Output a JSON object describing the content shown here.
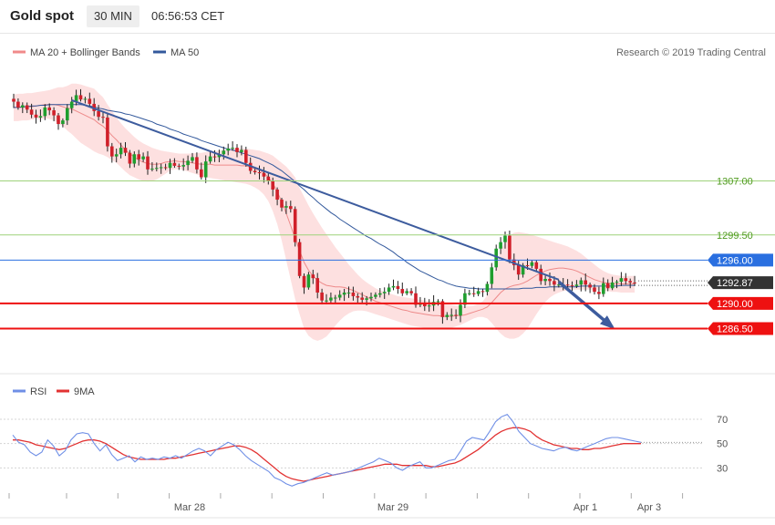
{
  "header": {
    "title": "Gold spot",
    "interval": "30 MIN",
    "time": "06:56:53 CET"
  },
  "legend": {
    "ma20_label": "MA 20 + Bollinger Bands",
    "ma50_label": "MA 50",
    "credit": "Research © 2019 Trading Central",
    "rsi_label": "RSI",
    "ma9_label": "9MA"
  },
  "colors": {
    "candle_up": "#1f9e2e",
    "candle_down": "#d0202a",
    "boll_fill": "#fde0e0",
    "ma20": "#ee8a8a",
    "ma50": "#33599c",
    "trendline": "#3d5c9e",
    "support": "#ee1111",
    "resistance_green": "#9ed27a",
    "current_price_bg": "#333333",
    "resistance_blue_bg": "#2a6fe0",
    "rsi_line": "#6f8fe6",
    "rsi_ma": "#e23232"
  },
  "chart_data": [
    {
      "type": "candlestick",
      "title": "Gold spot",
      "interval": "30 MIN",
      "ylim": [
        1281.5,
        1322.5
      ],
      "x_tick_labels": [
        "Mar 28",
        "Mar 29",
        "Apr 1",
        "Apr 3"
      ],
      "price_levels": [
        {
          "value": 1307.0,
          "label": "1307.00",
          "kind": "resistance-green"
        },
        {
          "value": 1299.5,
          "label": "1299.50",
          "kind": "resistance-green"
        },
        {
          "value": 1296.0,
          "label": "1296.00",
          "kind": "resistance-blue"
        },
        {
          "value": 1292.87,
          "label": "1292.87",
          "kind": "current-price"
        },
        {
          "value": 1290.0,
          "label": "1290.00",
          "kind": "support"
        },
        {
          "value": 1286.5,
          "label": "1286.50",
          "kind": "support"
        }
      ],
      "trendline": {
        "from": [
          13,
          1318.2
        ],
        "to": [
          122,
          1293.3
        ]
      },
      "forecast_arrow": {
        "from": [
          122,
          1293.0
        ],
        "to": [
          134,
          1286.7
        ]
      },
      "closes": [
        1318,
        1317.2,
        1317.5,
        1316.9,
        1316.2,
        1315.8,
        1316,
        1317.2,
        1316.8,
        1316.1,
        1314.9,
        1315.4,
        1317.1,
        1318,
        1318.9,
        1318.3,
        1318.4,
        1317.7,
        1316.7,
        1315.9,
        1315.8,
        1311.8,
        1310.4,
        1310.7,
        1311.6,
        1310.9,
        1309.4,
        1310.7,
        1310,
        1310.4,
        1308.6,
        1308.7,
        1308.8,
        1308.9,
        1308.8,
        1309.5,
        1309.1,
        1309,
        1309.2,
        1309.8,
        1310.3,
        1308.6,
        1307.5,
        1309.7,
        1310.4,
        1310.3,
        1310.7,
        1311.2,
        1311.5,
        1311.6,
        1311,
        1311.3,
        1309.5,
        1308.4,
        1308.2,
        1308.1,
        1307.6,
        1307,
        1305.8,
        1304.4,
        1303.3,
        1303.5,
        1303.1,
        1298.5,
        1293.8,
        1292.2,
        1294,
        1293.5,
        1291.5,
        1290.4,
        1290.4,
        1290.8,
        1290.8,
        1291.2,
        1291.5,
        1291.5,
        1291,
        1290.8,
        1290.5,
        1290.7,
        1290.9,
        1291.2,
        1291.4,
        1291.6,
        1292.2,
        1292.4,
        1292,
        1291.4,
        1291.7,
        1291.4,
        1289.8,
        1290.1,
        1289.6,
        1289.7,
        1290.2,
        1290.3,
        1288.1,
        1288.4,
        1288.4,
        1288.3,
        1289.8,
        1291.4,
        1291.4,
        1291.3,
        1291.7,
        1291.6,
        1292.7,
        1295,
        1297.6,
        1298.5,
        1299.4,
        1296.1,
        1295.3,
        1294,
        1295.3,
        1295.2,
        1295.7,
        1294.8,
        1293.1,
        1293.4,
        1293.1,
        1292.6,
        1292.6,
        1292.6,
        1292.5,
        1292.4,
        1292.6,
        1293.2,
        1292.6,
        1292.2,
        1291.6,
        1291.3,
        1292.8,
        1292.1,
        1292.9,
        1293,
        1293.5,
        1293.1,
        1292.9,
        1292.87
      ],
      "upper_band": [
        1319,
        1319.1,
        1319.1,
        1319.2,
        1319.2,
        1319.3,
        1319.4,
        1319.5,
        1319.6,
        1319.8,
        1320,
        1320,
        1320.2,
        1320.5,
        1320.5,
        1320.4,
        1320.2,
        1320,
        1319.8,
        1319.2,
        1318.6,
        1317.6,
        1316.7,
        1315.8,
        1315,
        1314.3,
        1313.7,
        1313.1,
        1312.6,
        1312.2,
        1311.9,
        1311.6,
        1311.4,
        1311.2,
        1311.1,
        1311,
        1310.9,
        1310.8,
        1310.8,
        1310.8,
        1310.8,
        1310.9,
        1310.9,
        1311,
        1311.1,
        1311.1,
        1311.2,
        1311.3,
        1311.4,
        1311.5,
        1311.5,
        1311.5,
        1311.5,
        1311.4,
        1311.3,
        1311.2,
        1311,
        1310.8,
        1310.5,
        1310,
        1309.5,
        1309,
        1308.3,
        1307.5,
        1306,
        1304.8,
        1303.6,
        1302.5,
        1301.5,
        1300.5,
        1299.6,
        1298.7,
        1297.8,
        1297,
        1296.2,
        1295.4,
        1294.7,
        1294,
        1293.4,
        1292.9,
        1292.5,
        1292.1,
        1291.8,
        1291.6,
        1291.4,
        1291.2,
        1291,
        1290.9,
        1290.8,
        1290.7,
        1290.6,
        1290.5,
        1290.4,
        1290.3,
        1290.2,
        1290.1,
        1290,
        1289.9,
        1289.8,
        1289.7,
        1289.6,
        1289.6,
        1289.6,
        1289.7,
        1289.9,
        1290.3,
        1291.1,
        1292.9,
        1295.2,
        1297.3,
        1298.6,
        1299.4,
        1299.8,
        1299.9,
        1299.8,
        1299.7,
        1299.5,
        1299.3,
        1299.1,
        1298.9,
        1298.7,
        1298.5,
        1298.3,
        1298.1,
        1297.9,
        1297.6,
        1297.3,
        1296.9,
        1296.4,
        1295.9,
        1295.4,
        1294.9,
        1294.5,
        1294.2,
        1294,
        1293.9,
        1293.8,
        1293.8,
        1293.8,
        1293.8
      ],
      "lower_band": [
        1315.3,
        1315.3,
        1315.4,
        1315.4,
        1315.5,
        1315.6,
        1315.6,
        1315.7,
        1315.6,
        1315.4,
        1315,
        1314.6,
        1314,
        1313.5,
        1312.9,
        1312.3,
        1311.9,
        1311.5,
        1311.1,
        1310.8,
        1310.6,
        1310.3,
        1309.9,
        1309.5,
        1308.9,
        1308.3,
        1307.8,
        1307.5,
        1307.2,
        1307,
        1306.9,
        1307,
        1307.2,
        1307.6,
        1308,
        1308.4,
        1308.6,
        1308.6,
        1308.5,
        1308.3,
        1308.1,
        1307.9,
        1307.7,
        1307.5,
        1307.4,
        1307.3,
        1307.2,
        1307.1,
        1307,
        1306.9,
        1306.8,
        1306.7,
        1306.6,
        1306.4,
        1306.1,
        1305.7,
        1305.1,
        1304.2,
        1302.8,
        1301,
        1298.7,
        1296,
        1293.3,
        1290.6,
        1288.5,
        1286.5,
        1285.5,
        1285,
        1284.8,
        1285,
        1285.4,
        1286.1,
        1286.9,
        1287.6,
        1288.2,
        1288.6,
        1288.9,
        1289,
        1289,
        1288.9,
        1288.7,
        1288.5,
        1288.3,
        1288.1,
        1287.9,
        1287.7,
        1287.5,
        1287.3,
        1287.1,
        1286.9,
        1286.8,
        1286.7,
        1286.6,
        1286.5,
        1286.4,
        1286.4,
        1286.4,
        1286.5,
        1286.6,
        1286.8,
        1287,
        1287.3,
        1287.6,
        1287.9,
        1288.1,
        1288.1,
        1287.9,
        1287.3,
        1286.5,
        1285.8,
        1285.3,
        1285.1,
        1285.1,
        1285.3,
        1285.8,
        1286.5,
        1287.5,
        1288.5,
        1289.4,
        1290.2,
        1290.8,
        1291.2,
        1291.5,
        1291.7,
        1291.8,
        1291.9,
        1291.9,
        1291.9,
        1291.9,
        1291.9,
        1291.8,
        1291.8,
        1291.7,
        1291.7,
        1291.6,
        1291.6,
        1291.5,
        1291.5,
        1291.5,
        1291.5
      ],
      "ma20": [
        1317.2,
        1317.2,
        1317.2,
        1317.3,
        1317.3,
        1317.4,
        1317.5,
        1317.6,
        1317.6,
        1317.6,
        1317.5,
        1317.3,
        1317.1,
        1317,
        1316.7,
        1316.4,
        1316.1,
        1315.8,
        1315.5,
        1315,
        1314.6,
        1314,
        1313.3,
        1312.7,
        1312,
        1311.3,
        1310.8,
        1310.3,
        1309.9,
        1309.6,
        1309.4,
        1309.3,
        1309.3,
        1309.4,
        1309.6,
        1309.7,
        1309.8,
        1309.7,
        1309.7,
        1309.6,
        1309.5,
        1309.4,
        1309.3,
        1309.3,
        1309.3,
        1309.2,
        1309.2,
        1309.2,
        1309.2,
        1309.2,
        1309.2,
        1309.1,
        1309.1,
        1308.9,
        1308.7,
        1308.5,
        1308.1,
        1307.5,
        1306.7,
        1305.5,
        1304.1,
        1302.5,
        1300.8,
        1299,
        1297.3,
        1295.7,
        1294.6,
        1293.8,
        1293.2,
        1292.8,
        1292.5,
        1292.4,
        1292.3,
        1292.3,
        1292.2,
        1292,
        1291.8,
        1291.5,
        1291.2,
        1290.9,
        1290.6,
        1290.3,
        1290.1,
        1289.9,
        1289.7,
        1289.5,
        1289.3,
        1289.1,
        1289,
        1288.8,
        1288.7,
        1288.6,
        1288.5,
        1288.4,
        1288.3,
        1288.3,
        1288.2,
        1288.2,
        1288.2,
        1288.3,
        1288.3,
        1288.4,
        1288.6,
        1288.8,
        1289,
        1289.2,
        1289.5,
        1290.1,
        1290.8,
        1291.5,
        1292,
        1292.3,
        1292.5,
        1292.6,
        1292.8,
        1293.1,
        1293.5,
        1293.9,
        1294.2,
        1294.5,
        1294.7,
        1294.8,
        1294.9,
        1294.9,
        1294.8,
        1294.7,
        1294.5,
        1294.2,
        1293.9,
        1293.6,
        1293.3,
        1293.1,
        1292.9,
        1292.8,
        1292.7,
        1292.7,
        1292.7,
        1292.7,
        1292.7,
        1292.7
      ],
      "ma50": [
        1317.2,
        1317.2,
        1317.3,
        1317.3,
        1317.4,
        1317.4,
        1317.5,
        1317.5,
        1317.6,
        1317.6,
        1317.6,
        1317.6,
        1317.6,
        1317.6,
        1317.6,
        1317.6,
        1317.5,
        1317.4,
        1317.3,
        1317.1,
        1317,
        1316.8,
        1316.7,
        1316.6,
        1316.5,
        1316.3,
        1316.2,
        1316,
        1315.8,
        1315.6,
        1315.4,
        1315.2,
        1314.9,
        1314.7,
        1314.5,
        1314.2,
        1314,
        1313.8,
        1313.5,
        1313.3,
        1313.1,
        1312.9,
        1312.6,
        1312.4,
        1312.2,
        1312,
        1311.8,
        1311.6,
        1311.4,
        1311.3,
        1311.1,
        1310.9,
        1310.7,
        1310.5,
        1310.3,
        1310.1,
        1309.8,
        1309.5,
        1309.2,
        1308.8,
        1308.4,
        1307.9,
        1307.4,
        1306.9,
        1306.3,
        1305.8,
        1305.2,
        1304.7,
        1304.1,
        1303.6,
        1303.1,
        1302.6,
        1302.2,
        1301.7,
        1301.3,
        1300.9,
        1300.5,
        1300.1,
        1299.7,
        1299.3,
        1299,
        1298.6,
        1298.2,
        1297.9,
        1297.5,
        1297.1,
        1296.6,
        1296.2,
        1295.7,
        1295.3,
        1294.9,
        1294.5,
        1294.2,
        1293.9,
        1293.6,
        1293.3,
        1293.1,
        1292.8,
        1292.6,
        1292.4,
        1292.3,
        1292.2,
        1292.1,
        1292.1,
        1292,
        1292,
        1292,
        1292,
        1292,
        1292,
        1292,
        1292,
        1292,
        1292,
        1292.1,
        1292.1,
        1292.1,
        1292.2,
        1292.2,
        1292.2,
        1292.3,
        1292.3,
        1292.3,
        1292.3,
        1292.3,
        1292.3,
        1292.3,
        1292.4,
        1292.4,
        1292.4,
        1292.4,
        1292.4,
        1292.4,
        1292.4,
        1292.4,
        1292.4,
        1292.5,
        1292.5,
        1292.5,
        1292.5
      ]
    },
    {
      "type": "line",
      "ylim": [
        10,
        85
      ],
      "y_tick_labels": [
        "70",
        "50",
        "30"
      ],
      "series": [
        {
          "name": "RSI",
          "values": [
            57,
            51,
            49,
            43,
            40,
            43,
            53,
            48,
            40,
            44,
            53,
            58,
            59,
            58,
            50,
            44,
            49,
            41,
            36,
            38,
            40,
            35,
            39,
            37,
            38,
            37,
            39,
            38,
            40,
            38,
            41,
            44,
            46,
            44,
            40,
            45,
            48,
            51,
            49,
            45,
            40,
            36,
            33,
            30,
            27,
            22,
            20,
            17,
            15,
            17,
            18,
            20,
            22,
            24,
            26,
            24,
            25,
            26,
            27,
            29,
            31,
            33,
            35,
            38,
            36,
            34,
            30,
            28,
            31,
            33,
            35,
            30,
            30,
            32,
            34,
            36,
            37,
            44,
            52,
            55,
            54,
            53,
            60,
            68,
            72,
            74,
            68,
            60,
            55,
            50,
            48,
            46,
            45,
            44,
            46,
            47,
            45,
            44,
            46,
            48,
            50,
            52,
            54,
            55,
            55,
            54,
            53,
            52,
            51
          ]
        },
        {
          "name": "9MA",
          "values": [
            53,
            53,
            52,
            51,
            49,
            48,
            47,
            46,
            45,
            46,
            48,
            50,
            52,
            53,
            53,
            52,
            50,
            47,
            44,
            41,
            39,
            38,
            37,
            37,
            37,
            37,
            37,
            38,
            38,
            39,
            40,
            41,
            42,
            43,
            44,
            45,
            46,
            47,
            48,
            48,
            47,
            45,
            42,
            38,
            34,
            30,
            26,
            23,
            21,
            20,
            19,
            20,
            21,
            22,
            23,
            24,
            25,
            26,
            27,
            28,
            29,
            30,
            31,
            32,
            33,
            33,
            33,
            32,
            32,
            32,
            32,
            32,
            31,
            31,
            32,
            33,
            34,
            36,
            39,
            42,
            45,
            49,
            53,
            57,
            60,
            62,
            63,
            63,
            62,
            60,
            56,
            53,
            51,
            49,
            48,
            47,
            46,
            46,
            45,
            45,
            46,
            46,
            47,
            48,
            49,
            50,
            50,
            50,
            50
          ]
        }
      ]
    }
  ]
}
